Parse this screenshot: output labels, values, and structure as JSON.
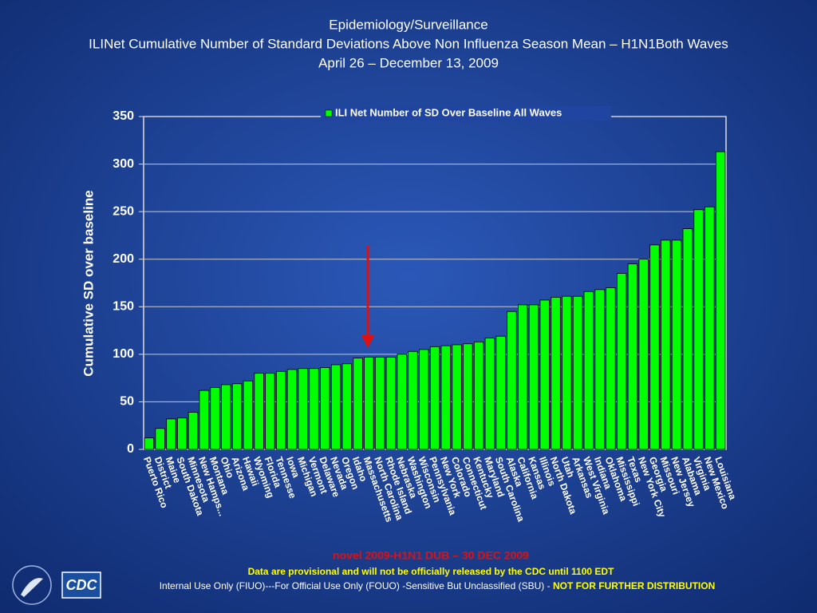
{
  "chart_data": {
    "type": "bar",
    "title": [
      "Epidemiology/Surveillance",
      "ILINet Cumulative Number of Standard Deviations Above Non Influenza Season Mean – H1N1Both Waves",
      "April 26 – December 13, 2009"
    ],
    "y_label": "Cumulative SD over baseline",
    "categories": [
      "Puerto Rico",
      "District",
      "Maine",
      "South Dakota",
      "Minnesota",
      "New Hamps...",
      "Montana",
      "Ohio",
      "Arizona",
      "Hawaii",
      "Wyoming",
      "Florida",
      "Tennesse",
      "Iowa",
      "Michigan",
      "Vermont",
      "Delaware",
      "Nevada",
      "Oregon",
      "Idaho",
      "Massachusetts",
      "North Carolina",
      "Rhode Island",
      "Nebraska",
      "Washington",
      "Wisconsin",
      "Pennsylvania",
      "New York",
      "Colorado",
      "Connecticut",
      "Kentucky",
      "Maryland",
      "South Carolina",
      "Alaska",
      "California",
      "Kansas",
      "Illinois",
      "North Dakota",
      "Utah",
      "Arkansas",
      "West Virginia",
      "Indiana",
      "Oklahoma",
      "Mississippi",
      "Texas",
      "New York City",
      "Georgia",
      "Missouri",
      "New Jersey",
      "Alabama",
      "Virginia",
      "New Mexico",
      "Louisiana"
    ],
    "series": [
      {
        "name": "ILI Net Number of SD Over Baseline All Waves",
        "color": "#00ff00",
        "values": [
          12,
          22,
          32,
          33,
          39,
          62,
          65,
          68,
          69,
          72,
          80,
          80,
          82,
          84,
          85,
          85,
          86,
          89,
          90,
          96,
          97,
          97,
          97,
          100,
          103,
          105,
          108,
          109,
          110,
          111,
          113,
          117,
          119,
          145,
          152,
          152,
          157,
          160,
          161,
          161,
          166,
          168,
          170,
          185,
          195,
          200,
          215,
          220,
          220,
          232,
          252,
          255,
          313
        ]
      }
    ],
    "ylim": [
      0,
      350
    ],
    "yticks": [
      0,
      50,
      100,
      150,
      200,
      250,
      300,
      350
    ],
    "grid": true,
    "legend": "top"
  },
  "footer": {
    "release": "novel 2009-H1N1 DUB – 30 DEC 2009",
    "provisional": "Data are provisional and will not be officially released by the CDC until 1100 EDT",
    "usage": "Internal Use Only (FIUO)---For Official Use Only (FOUO)  -Sensitive But Unclassified (SBU) - ",
    "warning": "NOT FOR FURTHER DISTRIBUTION"
  },
  "logo": "CDC"
}
